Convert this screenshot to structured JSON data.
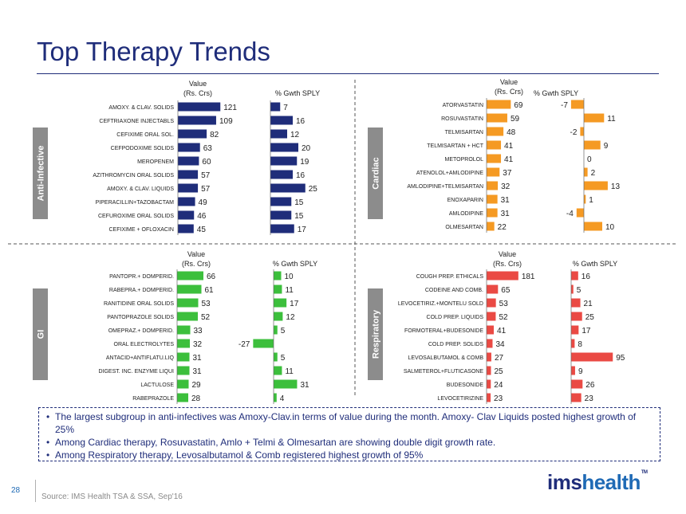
{
  "page": {
    "title": "Top Therapy Trends",
    "page_number": "28",
    "source": "Source: IMS Health TSA & SSA, Sep'16",
    "logo": {
      "part1": "ims",
      "part2": "health",
      "tm": "TM"
    }
  },
  "notes": [
    "The largest subgroup in anti-infectives was Amoxy-Clav.in terms of value during the month. Amoxy- Clav Liquids posted highest growth of 25%",
    "Among Cardiac therapy, Rosuvastatin, Amlo + Telmi & Olmesartan are showing double digit growth rate.",
    "Among Respiratory therapy, Levosalbutamol & Comb registered highest growth of 95%"
  ],
  "colors": {
    "anti_infective": "#1f2d7a",
    "cardiac": "#f59a23",
    "gi": "#3cbf3c",
    "respiratory": "#ea4a44",
    "tag_bg": "#8c8c8c",
    "title": "#1f2d7a"
  },
  "chart_data": [
    {
      "type": "bar",
      "panel": "Anti-Infective",
      "value_header_1": "Value",
      "value_header_2": "(Rs. Crs)",
      "growth_header": "% Gwth SPLY",
      "categories": [
        "AMOXY. & CLAV. SOLIDS",
        "CEFTRIAXONE INJECTABLS",
        "CEFIXIME ORAL SOL.",
        "CEFPODOXIME SOLIDS",
        "MEROPENEM",
        "AZITHROMYCIN ORAL SOLIDS",
        "AMOXY. & CLAV. LIQUIDS",
        "PIPERACILLIN+TAZOBACTAM",
        "CEFUROXIME ORAL SOLIDS",
        "CEFIXIME + OFLOXACIN"
      ],
      "values": [
        121,
        109,
        82,
        63,
        60,
        57,
        57,
        49,
        46,
        45
      ],
      "growth": [
        7,
        16,
        12,
        20,
        19,
        16,
        25,
        15,
        15,
        17
      ]
    },
    {
      "type": "bar",
      "panel": "Cardiac",
      "value_header_1": "Value",
      "value_header_2": "(Rs. Crs)",
      "growth_header": "% Gwth SPLY",
      "categories": [
        "ATORVASTATIN",
        "ROSUVASTATIN",
        "TELMISARTAN",
        "TELMISARTAN + HCT",
        "METOPROLOL",
        "ATENOLOL+AMLODIPINE",
        "AMLODIPINE+TELMISARTAN",
        "ENOXAPARIN",
        "AMLODIPINE",
        "OLMESARTAN"
      ],
      "values": [
        69,
        59,
        48,
        41,
        41,
        37,
        32,
        31,
        31,
        22
      ],
      "growth": [
        -7,
        11,
        -2,
        9,
        0,
        2,
        13,
        1,
        -4,
        10
      ]
    },
    {
      "type": "bar",
      "panel": "GI",
      "value_header_1": "Value",
      "value_header_2": "(Rs. Crs)",
      "growth_header": "% Gwth SPLY",
      "categories": [
        "PANTOPR.+ DOMPERID.",
        "RABEPRA.+ DOMPERID.",
        "RANITIDINE ORAL SOLIDS",
        "PANTOPRAZOLE SOLIDS",
        "OMEPRAZ.+ DOMPERID.",
        "ORAL ELECTROLYTES",
        "ANTACID+ANTIFLATU.LIQ",
        "DIGEST. INC. ENZYME LIQUI",
        "LACTULOSE",
        "RABEPRAZOLE"
      ],
      "values": [
        66,
        61,
        53,
        52,
        33,
        32,
        31,
        31,
        29,
        28
      ],
      "growth": [
        10,
        11,
        17,
        12,
        5,
        -27,
        5,
        11,
        31,
        4
      ]
    },
    {
      "type": "bar",
      "panel": "Respiratory",
      "value_header_1": "Value",
      "value_header_2": "(Rs. Crs)",
      "growth_header": "% Gwth SPLY",
      "categories": [
        "COUGH PREP. ETHICALS",
        "CODEINE AND COMB.",
        "LEVOCETIRIZ.+MONTELU SOLD",
        "COLD PREP. LIQUIDS",
        "FORMOTERAL+BUDESONIDE",
        "COLD PREP. SOLIDS",
        "LEVOSALBUTAMOL & COMB",
        "SALMETEROL+FLUTICASONE",
        "BUDESONIDE",
        "LEVOCETIRIZINE"
      ],
      "values": [
        181,
        65,
        53,
        52,
        41,
        34,
        27,
        25,
        24,
        23
      ],
      "growth": [
        16,
        5,
        21,
        25,
        17,
        8,
        95,
        9,
        26,
        23
      ]
    }
  ]
}
